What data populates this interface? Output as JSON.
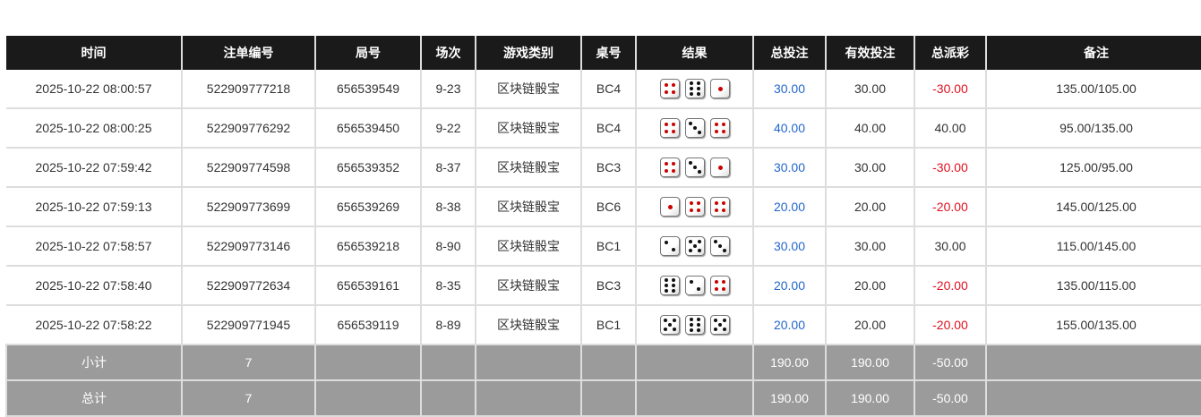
{
  "headers": [
    "时间",
    "注单编号",
    "局号",
    "场次",
    "游戏类别",
    "桌号",
    "结果",
    "总投注",
    "有效投注",
    "总派彩",
    "备注"
  ],
  "colors": {
    "bet": "#2266cc",
    "loss": "#e0101e",
    "header_bg": "#1a1a1a",
    "summary_bg": "#9b9b9b"
  },
  "rows": [
    {
      "time": "2025-10-22 08:00:57",
      "order": "522909777218",
      "round": "656539549",
      "session": "9-23",
      "game": "区块链骰宝",
      "table": "BC4",
      "dice": [
        4,
        6,
        1
      ],
      "bet": "30.00",
      "valid": "30.00",
      "payout": "-30.00",
      "note": "135.00/105.00"
    },
    {
      "time": "2025-10-22 08:00:25",
      "order": "522909776292",
      "round": "656539450",
      "session": "9-22",
      "game": "区块链骰宝",
      "table": "BC4",
      "dice": [
        4,
        3,
        4
      ],
      "bet": "40.00",
      "valid": "40.00",
      "payout": "40.00",
      "note": "95.00/135.00"
    },
    {
      "time": "2025-10-22 07:59:42",
      "order": "522909774598",
      "round": "656539352",
      "session": "8-37",
      "game": "区块链骰宝",
      "table": "BC3",
      "dice": [
        4,
        3,
        1
      ],
      "bet": "30.00",
      "valid": "30.00",
      "payout": "-30.00",
      "note": "125.00/95.00"
    },
    {
      "time": "2025-10-22 07:59:13",
      "order": "522909773699",
      "round": "656539269",
      "session": "8-38",
      "game": "区块链骰宝",
      "table": "BC6",
      "dice": [
        1,
        4,
        4
      ],
      "bet": "20.00",
      "valid": "20.00",
      "payout": "-20.00",
      "note": "145.00/125.00"
    },
    {
      "time": "2025-10-22 07:58:57",
      "order": "522909773146",
      "round": "656539218",
      "session": "8-90",
      "game": "区块链骰宝",
      "table": "BC1",
      "dice": [
        2,
        5,
        3
      ],
      "bet": "30.00",
      "valid": "30.00",
      "payout": "30.00",
      "note": "115.00/145.00"
    },
    {
      "time": "2025-10-22 07:58:40",
      "order": "522909772634",
      "round": "656539161",
      "session": "8-35",
      "game": "区块链骰宝",
      "table": "BC3",
      "dice": [
        6,
        2,
        4
      ],
      "bet": "20.00",
      "valid": "20.00",
      "payout": "-20.00",
      "note": "135.00/115.00"
    },
    {
      "time": "2025-10-22 07:58:22",
      "order": "522909771945",
      "round": "656539119",
      "session": "8-89",
      "game": "区块链骰宝",
      "table": "BC1",
      "dice": [
        5,
        6,
        5
      ],
      "bet": "20.00",
      "valid": "20.00",
      "payout": "-20.00",
      "note": "155.00/135.00"
    }
  ],
  "subtotal": {
    "label": "小计",
    "count": "7",
    "bet": "190.00",
    "valid": "190.00",
    "payout": "-50.00"
  },
  "total": {
    "label": "总计",
    "count": "7",
    "bet": "190.00",
    "valid": "190.00",
    "payout": "-50.00"
  }
}
